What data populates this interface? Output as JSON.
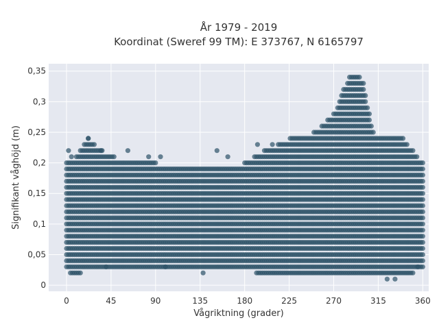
{
  "chart_data": {
    "type": "scatter",
    "title": "År 1979 - 2019",
    "subtitle": "Koordinat (Sweref 99 TM): E 373767, N 6165797",
    "xlabel": "Vågriktning (grader)",
    "ylabel": "Signifikant våghöjd (m)",
    "xlim": [
      -18,
      366
    ],
    "ylim": [
      -0.01,
      0.362
    ],
    "xticks": [
      "0",
      "45",
      "90",
      "135",
      "180",
      "225",
      "270",
      "315",
      "360"
    ],
    "yticks": [
      "0",
      "0,05",
      "0,1",
      "0,15",
      "0,2",
      "0,25",
      "0,3",
      "0,35"
    ],
    "grid": true,
    "legend": "none",
    "colors": {
      "marker": "#2d5268",
      "plot_background": "#e5e8f0",
      "grid": "#ffffff"
    },
    "series": [
      {
        "envelope": [
          [
            0,
            0.03,
            0.2
          ],
          [
            10,
            0.02,
            0.21
          ],
          [
            22,
            0.03,
            0.24
          ],
          [
            45,
            0.03,
            0.21
          ],
          [
            90,
            0.03,
            0.2
          ],
          [
            130,
            0.03,
            0.19
          ],
          [
            180,
            0.03,
            0.2
          ],
          [
            200,
            0.02,
            0.22
          ],
          [
            225,
            0.02,
            0.24
          ],
          [
            250,
            0.02,
            0.25
          ],
          [
            270,
            0.02,
            0.28
          ],
          [
            285,
            0.02,
            0.34
          ],
          [
            293,
            0.02,
            0.35
          ],
          [
            300,
            0.02,
            0.33
          ],
          [
            310,
            0.02,
            0.25
          ],
          [
            340,
            0.02,
            0.24
          ],
          [
            360,
            0.03,
            0.2
          ]
        ],
        "outliers": [
          [
            2,
            0.22
          ],
          [
            5,
            0.21
          ],
          [
            22,
            0.24
          ],
          [
            35,
            0.22
          ],
          [
            46,
            0.21
          ],
          [
            48,
            0.21
          ],
          [
            62,
            0.22
          ],
          [
            83,
            0.21
          ],
          [
            95,
            0.21
          ],
          [
            152,
            0.22
          ],
          [
            163,
            0.21
          ],
          [
            193,
            0.23
          ],
          [
            208,
            0.23
          ],
          [
            324,
            0.01
          ],
          [
            332,
            0.01
          ],
          [
            138,
            0.02
          ],
          [
            350,
            0.02
          ],
          [
            4,
            0.02
          ],
          [
            355,
            0.03
          ],
          [
            40,
            0.03
          ],
          [
            100,
            0.03
          ]
        ]
      }
    ]
  }
}
